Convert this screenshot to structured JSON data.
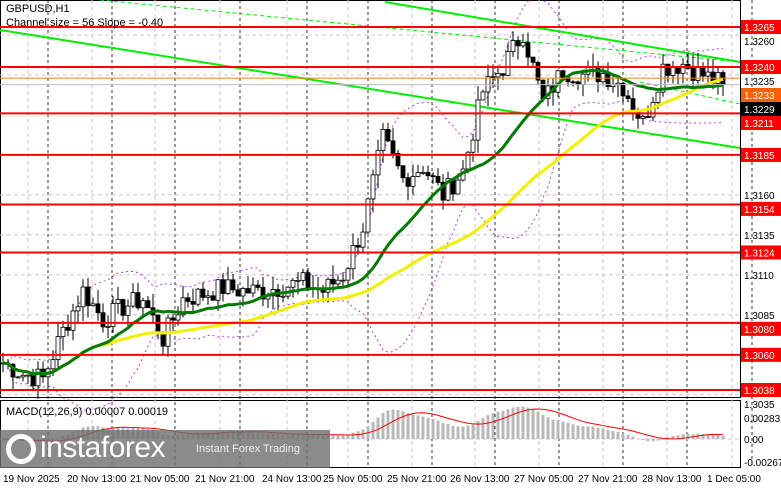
{
  "header": {
    "symbol": "GBPUSD,H1",
    "channel_info": "Channel size = 56 Slope = -0.40"
  },
  "macd": {
    "label": "MACD(12,26,9) 0.00007 0.00019",
    "axis_labels": [
      "0.00283",
      "0.00",
      "-0.00267"
    ],
    "levels": [
      0.00283,
      0,
      -0.00267
    ]
  },
  "chart_data": {
    "type": "candlestick",
    "title": "GBPUSD,H1",
    "ylim": [
      1.303,
      1.3282
    ],
    "y_tick_labels": [
      "1.3260",
      "1.3235",
      "1.3160",
      "1.3135",
      "1.3110",
      "1.3085",
      "1.3035"
    ],
    "y_ticks": [
      1.326,
      1.3235,
      1.316,
      1.3135,
      1.311,
      1.3085,
      1.3035
    ],
    "x_tick_labels": [
      "19 Nov 2025",
      "20 Nov 13:00",
      "21 Nov 05:00",
      "21 Nov 21:00",
      "24 Nov 13:00",
      "25 Nov 05:00",
      "25 Nov 21:00",
      "26 Nov 13:00",
      "27 Nov 05:00",
      "27 Nov 21:00",
      "28 Nov 13:00",
      "1 Dec 05:00"
    ],
    "levels": [
      {
        "price": 1.3265,
        "label": "1.3265"
      },
      {
        "price": 1.324,
        "label": "1.3240"
      },
      {
        "price": 1.3211,
        "label": "1.3211"
      },
      {
        "price": 1.3185,
        "label": "1.3185"
      },
      {
        "price": 1.3154,
        "label": "1.3154"
      },
      {
        "price": 1.3124,
        "label": "1.3124"
      },
      {
        "price": 1.308,
        "label": "1.3080"
      },
      {
        "price": 1.306,
        "label": "1.3060"
      },
      {
        "price": 1.3038,
        "label": "1.3038"
      }
    ],
    "ask_label": "1.3233",
    "current_price": {
      "price": 1.3229,
      "label": "1.3229"
    },
    "approx_closes": [
      1.3055,
      1.3048,
      1.3045,
      1.3075,
      1.31,
      1.3082,
      1.309,
      1.3095,
      1.307,
      1.3095,
      1.3098,
      1.3102,
      1.31,
      1.31,
      1.3103,
      1.3105,
      1.31,
      1.311,
      1.314,
      1.3195,
      1.317,
      1.3178,
      1.316,
      1.3175,
      1.3225,
      1.324,
      1.3262,
      1.3218,
      1.3238,
      1.3235,
      1.3236,
      1.3228,
      1.3205,
      1.324,
      1.3242,
      1.3235,
      1.3229
    ],
    "colors": {
      "level": "#ff0000",
      "fast_ma": "#007a00",
      "slow_ma": "#f0f000",
      "bollinger": "#b040e0",
      "channel": "#00ee00",
      "macd_hist": "#b8b8b8",
      "macd_signal": "#ff0000"
    }
  },
  "watermark": {
    "brand": "instaforex",
    "tagline": "Instant Forex Trading"
  }
}
